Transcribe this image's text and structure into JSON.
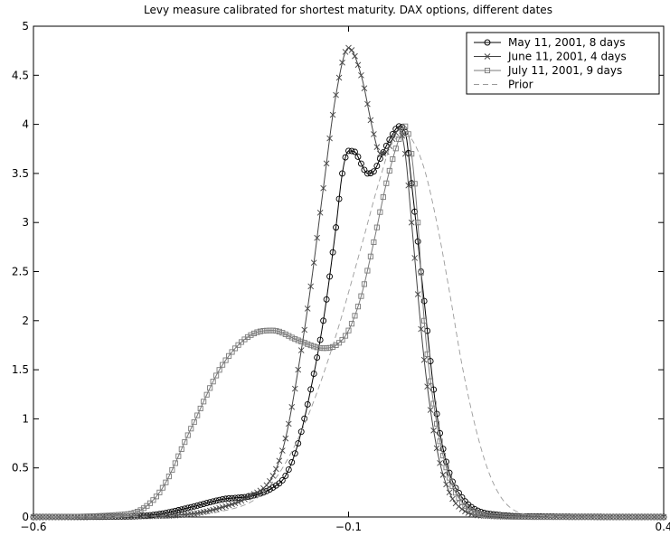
{
  "chart_data": {
    "type": "line",
    "title": "Levy measure calibrated for shortest maturity.  DAX options, different dates",
    "xlabel": "",
    "ylabel": "",
    "xlim": [
      -0.6,
      0.4
    ],
    "ylim": [
      0,
      5
    ],
    "x_ticks": [
      {
        "value": -0.6,
        "label": "−0.6"
      },
      {
        "value": -0.1,
        "label": "−0.1"
      },
      {
        "value": 0.4,
        "label": "0.4"
      }
    ],
    "y_ticks": [
      {
        "value": 0,
        "label": "0"
      },
      {
        "value": 0.5,
        "label": "0.5"
      },
      {
        "value": 1,
        "label": "1"
      },
      {
        "value": 1.5,
        "label": "1.5"
      },
      {
        "value": 2,
        "label": "2"
      },
      {
        "value": 2.5,
        "label": "2.5"
      },
      {
        "value": 3,
        "label": "3"
      },
      {
        "value": 3.5,
        "label": "3.5"
      },
      {
        "value": 4,
        "label": "4"
      },
      {
        "value": 4.5,
        "label": "4.5"
      },
      {
        "value": 5,
        "label": "5"
      }
    ],
    "grid": false,
    "legend_position": "top-right",
    "series": [
      {
        "name": "May 11, 2001, 8 days",
        "marker": "circle",
        "color": "#000000",
        "points": [
          [
            -0.6,
            0
          ],
          [
            -0.45,
            0.005
          ],
          [
            -0.4,
            0.03
          ],
          [
            -0.35,
            0.1
          ],
          [
            -0.3,
            0.18
          ],
          [
            -0.25,
            0.22
          ],
          [
            -0.22,
            0.3
          ],
          [
            -0.2,
            0.42
          ],
          [
            -0.18,
            0.75
          ],
          [
            -0.16,
            1.3
          ],
          [
            -0.14,
            2.0
          ],
          [
            -0.12,
            2.95
          ],
          [
            -0.11,
            3.5
          ],
          [
            -0.1,
            3.73
          ],
          [
            -0.09,
            3.72
          ],
          [
            -0.08,
            3.6
          ],
          [
            -0.07,
            3.5
          ],
          [
            -0.06,
            3.52
          ],
          [
            -0.05,
            3.65
          ],
          [
            -0.03,
            3.9
          ],
          [
            -0.02,
            3.98
          ],
          [
            -0.01,
            3.92
          ],
          [
            0.0,
            3.4
          ],
          [
            0.02,
            2.2
          ],
          [
            0.04,
            1.05
          ],
          [
            0.06,
            0.45
          ],
          [
            0.08,
            0.2
          ],
          [
            0.1,
            0.08
          ],
          [
            0.14,
            0.02
          ],
          [
            0.2,
            0.005
          ],
          [
            0.4,
            0
          ]
        ]
      },
      {
        "name": "June 11, 2001, 4 days",
        "marker": "x",
        "color": "#444444",
        "points": [
          [
            -0.6,
            0
          ],
          [
            -0.45,
            0.005
          ],
          [
            -0.35,
            0.03
          ],
          [
            -0.3,
            0.1
          ],
          [
            -0.26,
            0.2
          ],
          [
            -0.22,
            0.42
          ],
          [
            -0.2,
            0.8
          ],
          [
            -0.18,
            1.5
          ],
          [
            -0.16,
            2.35
          ],
          [
            -0.14,
            3.35
          ],
          [
            -0.12,
            4.3
          ],
          [
            -0.1,
            4.78
          ],
          [
            -0.08,
            4.5
          ],
          [
            -0.06,
            3.9
          ],
          [
            -0.05,
            3.7
          ],
          [
            -0.04,
            3.72
          ],
          [
            -0.03,
            3.85
          ],
          [
            -0.02,
            3.95
          ],
          [
            -0.01,
            3.7
          ],
          [
            0.0,
            3.0
          ],
          [
            0.02,
            1.6
          ],
          [
            0.04,
            0.7
          ],
          [
            0.06,
            0.25
          ],
          [
            0.08,
            0.08
          ],
          [
            0.12,
            0.01
          ],
          [
            0.2,
            0
          ],
          [
            0.4,
            0
          ]
        ]
      },
      {
        "name": "July 11, 2001, 9 days",
        "marker": "square",
        "color": "#7a7a7a",
        "points": [
          [
            -0.6,
            0
          ],
          [
            -0.45,
            0.03
          ],
          [
            -0.4,
            0.25
          ],
          [
            -0.35,
            0.9
          ],
          [
            -0.3,
            1.55
          ],
          [
            -0.25,
            1.87
          ],
          [
            -0.22,
            1.9
          ],
          [
            -0.18,
            1.8
          ],
          [
            -0.14,
            1.72
          ],
          [
            -0.12,
            1.75
          ],
          [
            -0.1,
            1.9
          ],
          [
            -0.08,
            2.25
          ],
          [
            -0.06,
            2.8
          ],
          [
            -0.04,
            3.4
          ],
          [
            -0.02,
            3.85
          ],
          [
            -0.01,
            3.98
          ],
          [
            0.0,
            3.7
          ],
          [
            0.01,
            3.0
          ],
          [
            0.02,
            2.0
          ],
          [
            0.04,
            0.95
          ],
          [
            0.06,
            0.4
          ],
          [
            0.08,
            0.15
          ],
          [
            0.1,
            0.05
          ],
          [
            0.14,
            0.01
          ],
          [
            0.2,
            0
          ],
          [
            0.4,
            0
          ]
        ]
      },
      {
        "name": "Prior",
        "marker": "none",
        "dash": true,
        "color": "#9a9a9a",
        "points": [
          [
            -0.6,
            0
          ],
          [
            -0.4,
            0.01
          ],
          [
            -0.3,
            0.06
          ],
          [
            -0.24,
            0.22
          ],
          [
            -0.2,
            0.55
          ],
          [
            -0.16,
            1.1
          ],
          [
            -0.12,
            1.85
          ],
          [
            -0.08,
            2.75
          ],
          [
            -0.05,
            3.45
          ],
          [
            -0.03,
            3.82
          ],
          [
            -0.01,
            3.88
          ],
          [
            0.0,
            3.85
          ],
          [
            0.02,
            3.55
          ],
          [
            0.04,
            3.0
          ],
          [
            0.06,
            2.3
          ],
          [
            0.08,
            1.55
          ],
          [
            0.1,
            0.95
          ],
          [
            0.12,
            0.5
          ],
          [
            0.14,
            0.22
          ],
          [
            0.16,
            0.08
          ],
          [
            0.2,
            0.015
          ],
          [
            0.3,
            0
          ],
          [
            0.4,
            0
          ]
        ]
      }
    ]
  }
}
